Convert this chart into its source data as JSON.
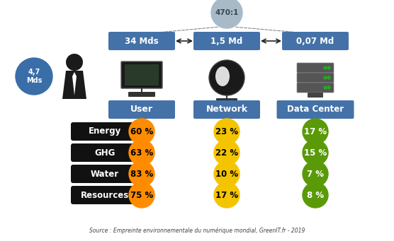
{
  "title_ratio": "470:1",
  "user_label": "User",
  "network_label": "Network",
  "datacenter_label": "Data Center",
  "user_count": "34 Mds",
  "network_count": "1,5 Md",
  "datacenter_count": "0,07 Md",
  "people_count": "4,7\nMds",
  "rows": [
    "Energy",
    "GHG",
    "Water",
    "Resources"
  ],
  "user_vals": [
    "60 %",
    "63 %",
    "83 %",
    "75 %"
  ],
  "network_vals": [
    "23 %",
    "22 %",
    "10 %",
    "17 %"
  ],
  "dc_vals": [
    "17 %",
    "15 %",
    "7 %",
    "8 %"
  ],
  "orange_color": "#FF8C00",
  "yellow_color": "#F5C400",
  "green_color": "#5A9A08",
  "blue_box_color": "#4472A8",
  "black_box_color": "#111111",
  "ratio_circle_color": "#A8BAC8",
  "people_circle_color": "#3A6EA8",
  "source_text": "Source : Empreinte environnementale du numérique mondial, GreenIT.fr - 2019",
  "bg_color": "#ffffff",
  "orange_text": "#000000",
  "yellow_text": "#000000",
  "green_text": "#ffffff"
}
